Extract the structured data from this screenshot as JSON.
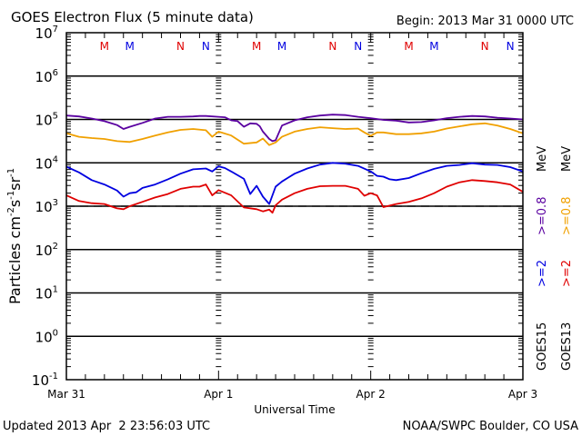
{
  "chart_data": {
    "type": "line",
    "title": "GOES Electron Flux (5 minute data)",
    "subtitle": "Begin: 2013 Mar 31 0000 UTC",
    "xlabel": "Universal Time",
    "ylabel": "Particles cm-2s-1sr-1",
    "ylabel_parts": {
      "main": "Particles cm",
      "sup1": "-2",
      "mid": "s",
      "sup2": "-1",
      "mid2": "sr",
      "sup3": "-1"
    },
    "yscale": "log",
    "ylim": [
      0.1,
      10000000
    ],
    "xlim_hours": [
      0,
      72
    ],
    "x_tick_labels": [
      "Mar 31",
      "Apr 1",
      "Apr 2",
      "Apr 3"
    ],
    "y_tick_labels": [
      {
        "base": "10",
        "exp": "7"
      },
      {
        "base": "10",
        "exp": "6"
      },
      {
        "base": "10",
        "exp": "5"
      },
      {
        "base": "10",
        "exp": "4"
      },
      {
        "base": "10",
        "exp": "3"
      },
      {
        "base": "10",
        "exp": "2"
      },
      {
        "base": "10",
        "exp": "1"
      },
      {
        "base": "10",
        "exp": "0"
      },
      {
        "base": "10",
        "exp": "-1"
      }
    ],
    "threshold_line": 1000,
    "grid": "decade lines",
    "markers": [
      {
        "label": "M",
        "color": "#e00000",
        "hours": [
          6,
          30,
          54
        ]
      },
      {
        "label": "M",
        "color": "#0000e0",
        "hours": [
          10,
          34,
          58
        ]
      },
      {
        "label": "N",
        "color": "#e00000",
        "hours": [
          18,
          42,
          66
        ]
      },
      {
        "label": "N",
        "color": "#0000e0",
        "hours": [
          22,
          46,
          70
        ]
      }
    ],
    "legend_position": "right",
    "legend": [
      {
        "sat": "GOES15",
        "label1": ">=2",
        "label2": ">=0.8",
        "unit": "MeV",
        "color1": "#0000e0",
        "color2": "#5a00a0"
      },
      {
        "sat": "GOES13",
        "label1": ">=2",
        "label2": ">=0.8",
        "unit": "MeV",
        "color1": "#e00000",
        "color2": "#f0a000"
      }
    ],
    "series": [
      {
        "name": "GOES15 >=0.8 MeV",
        "color": "#5a00a0",
        "x": [
          0,
          2,
          4,
          6,
          8,
          9,
          10,
          12,
          14,
          16,
          18,
          20,
          21,
          22,
          24,
          25,
          26,
          27,
          28,
          29,
          30,
          30.5,
          31,
          32,
          32.5,
          33,
          34,
          36,
          38,
          40,
          42,
          44,
          46,
          48,
          50,
          52,
          54,
          56,
          58,
          60,
          62,
          64,
          66,
          68,
          70,
          72
        ],
        "log10": [
          5.09,
          5.07,
          5.02,
          4.96,
          4.87,
          4.78,
          4.83,
          4.92,
          5.02,
          5.06,
          5.06,
          5.07,
          5.08,
          5.08,
          5.06,
          5.05,
          4.98,
          4.96,
          4.83,
          4.91,
          4.9,
          4.84,
          4.72,
          4.55,
          4.5,
          4.52,
          4.86,
          4.98,
          5.05,
          5.09,
          5.11,
          5.1,
          5.06,
          5.03,
          4.99,
          4.97,
          4.93,
          4.94,
          4.98,
          5.03,
          5.06,
          5.08,
          5.07,
          5.04,
          5.02,
          5.0
        ]
      },
      {
        "name": "GOES13 >=0.8 MeV",
        "color": "#f0a000",
        "x": [
          0,
          2,
          4,
          6,
          8,
          10,
          12,
          14,
          16,
          18,
          20,
          22,
          23,
          24,
          26,
          28,
          30,
          31,
          32,
          33,
          34,
          36,
          38,
          40,
          42,
          44,
          46,
          47,
          48,
          49,
          50,
          52,
          54,
          56,
          58,
          60,
          62,
          64,
          66,
          68,
          70,
          72
        ],
        "log10": [
          4.68,
          4.6,
          4.57,
          4.55,
          4.5,
          4.48,
          4.55,
          4.63,
          4.7,
          4.76,
          4.78,
          4.75,
          4.6,
          4.72,
          4.63,
          4.44,
          4.47,
          4.56,
          4.41,
          4.47,
          4.6,
          4.72,
          4.78,
          4.82,
          4.8,
          4.78,
          4.79,
          4.7,
          4.62,
          4.7,
          4.7,
          4.66,
          4.66,
          4.68,
          4.72,
          4.79,
          4.84,
          4.89,
          4.91,
          4.86,
          4.78,
          4.68
        ]
      },
      {
        "name": "GOES15 >=2 MeV",
        "color": "#0000e0",
        "x": [
          0,
          2,
          4,
          6,
          8,
          9,
          10,
          11,
          12,
          14,
          16,
          18,
          20,
          22,
          23,
          24,
          25,
          26,
          28,
          29,
          30,
          31,
          32,
          33,
          34,
          35,
          36,
          38,
          40,
          42,
          44,
          46,
          48,
          49,
          50,
          51,
          52,
          54,
          56,
          58,
          60,
          62,
          64,
          66,
          68,
          70,
          72
        ],
        "log10": [
          3.91,
          3.78,
          3.6,
          3.5,
          3.36,
          3.22,
          3.3,
          3.32,
          3.42,
          3.5,
          3.62,
          3.75,
          3.85,
          3.87,
          3.8,
          3.92,
          3.88,
          3.8,
          3.63,
          3.28,
          3.47,
          3.22,
          3.05,
          3.45,
          3.57,
          3.66,
          3.75,
          3.87,
          3.96,
          4.0,
          3.98,
          3.93,
          3.8,
          3.7,
          3.68,
          3.62,
          3.6,
          3.65,
          3.76,
          3.86,
          3.93,
          3.95,
          3.99,
          3.96,
          3.95,
          3.9,
          3.8
        ]
      },
      {
        "name": "GOES13 >=2 MeV",
        "color": "#e00000",
        "x": [
          0,
          2,
          4,
          6,
          8,
          9,
          10,
          12,
          14,
          16,
          18,
          20,
          21,
          22,
          23,
          24,
          26,
          28,
          30,
          31,
          32,
          32.5,
          33,
          34,
          36,
          38,
          40,
          42,
          44,
          46,
          47,
          48,
          49,
          50,
          52,
          54,
          56,
          58,
          60,
          62,
          64,
          66,
          68,
          70,
          72
        ],
        "log10": [
          3.25,
          3.12,
          3.07,
          3.05,
          2.95,
          2.93,
          3.0,
          3.1,
          3.2,
          3.28,
          3.4,
          3.45,
          3.45,
          3.5,
          3.25,
          3.37,
          3.25,
          2.97,
          2.93,
          2.88,
          2.92,
          2.85,
          3.02,
          3.15,
          3.3,
          3.4,
          3.46,
          3.47,
          3.47,
          3.4,
          3.24,
          3.3,
          3.25,
          2.98,
          3.05,
          3.1,
          3.18,
          3.3,
          3.45,
          3.55,
          3.6,
          3.58,
          3.55,
          3.5,
          3.33
        ]
      }
    ]
  },
  "footer": {
    "updated": "Updated 2013 Apr  2 23:56:03 UTC",
    "credit": "NOAA/SWPC Boulder, CO USA"
  }
}
